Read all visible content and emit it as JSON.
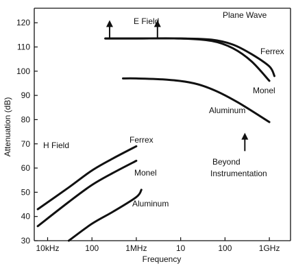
{
  "chart_data": {
    "type": "line",
    "xlabel": "Frequency",
    "ylabel": "Attenuation (dB)",
    "x_scale": "log",
    "xlim": [
      "5kHz",
      "3GHz"
    ],
    "ylim": [
      30,
      126
    ],
    "xticks": [
      {
        "label": "10kHz",
        "value": 10000
      },
      {
        "label": "100",
        "value": 100000
      },
      {
        "label": "1MHz",
        "value": 1000000
      },
      {
        "label": "10",
        "value": 10000000
      },
      {
        "label": "100",
        "value": 100000000
      },
      {
        "label": "1GHz",
        "value": 1000000000
      }
    ],
    "yticks": [
      30,
      40,
      50,
      60,
      70,
      80,
      90,
      100,
      110,
      120
    ],
    "grid": false,
    "annotations": {
      "e_field": "E Field",
      "plane_wave": "Plane Wave",
      "h_field": "H Field",
      "beyond_1": "Beyond",
      "beyond_2": "Instrumentation"
    },
    "series": [
      {
        "name": "Ferrex",
        "group": "E Field / Plane Wave",
        "x": [
          200000,
          1000000,
          10000000,
          50000000,
          150000000,
          400000000,
          1000000000,
          1300000000
        ],
        "y": [
          113.5,
          113.5,
          113.5,
          113,
          111,
          107,
          102,
          98
        ]
      },
      {
        "name": "Monel",
        "group": "E Field / Plane Wave",
        "x": [
          200000,
          1000000,
          10000000,
          50000000,
          150000000,
          400000000,
          1000000000
        ],
        "y": [
          113.5,
          113.5,
          113.5,
          112.5,
          109.5,
          104,
          96
        ]
      },
      {
        "name": "Aluminum",
        "group": "E Field / Plane Wave",
        "x": [
          500000,
          1000000,
          5000000,
          20000000,
          60000000,
          200000000,
          1000000000
        ],
        "y": [
          97,
          97,
          96.5,
          95,
          92,
          87,
          79
        ]
      },
      {
        "name": "Ferrex",
        "group": "H Field",
        "x": [
          6000,
          30000,
          100000,
          300000,
          1000000
        ],
        "y": [
          43,
          52,
          59,
          64,
          69
        ]
      },
      {
        "name": "Monel",
        "group": "H Field",
        "x": [
          6000,
          30000,
          100000,
          300000,
          1000000
        ],
        "y": [
          36,
          46,
          53,
          58,
          63
        ]
      },
      {
        "name": "Aluminum",
        "group": "H Field",
        "x": [
          30000,
          100000,
          300000,
          1000000,
          1300000
        ],
        "y": [
          30,
          37,
          42,
          48,
          51
        ]
      }
    ],
    "arrows": [
      {
        "x": 250000,
        "y_from": 113.5,
        "y_to": 120.5
      },
      {
        "x": 3000000,
        "y_from": 113.5,
        "y_to": 120.5
      },
      {
        "x": 280000000,
        "y_from": 67,
        "y_to": 74
      }
    ]
  }
}
